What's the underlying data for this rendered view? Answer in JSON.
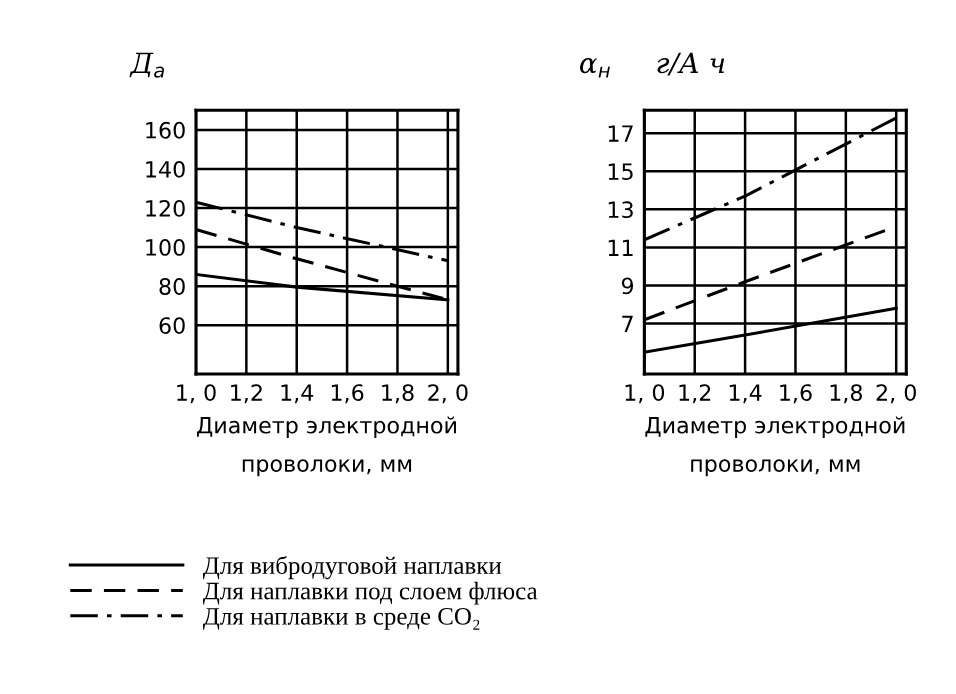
{
  "chart_data": [
    {
      "type": "line",
      "ylabel": "Д$_{а}$",
      "xlabel": "Диаметр электродной\nпроволоки, мм",
      "x": [
        1.0,
        1.4,
        2.0
      ],
      "series": [
        {
          "name": "Для вибродуговой наплавки",
          "color": "#000000",
          "line_style": "solid",
          "values": [
            86,
            79.5,
            73
          ]
        },
        {
          "name": "Для наплавки под слоем флюса",
          "color": "#000000",
          "line_style": "dashed",
          "values": [
            109,
            94,
            73
          ]
        },
        {
          "name": "Для наплавки в среде CO₂",
          "color": "#000000",
          "line_style": "dashdot",
          "values": [
            123,
            110,
            93
          ]
        }
      ],
      "xlim": [
        1.0,
        2.04
      ],
      "xticks": [
        {
          "value": 1.0,
          "label": "1, 0"
        },
        {
          "value": 1.2,
          "label": "1,2"
        },
        {
          "value": 1.4,
          "label": "1,4"
        },
        {
          "value": 1.6,
          "label": "1,6"
        },
        {
          "value": 1.8,
          "label": "1,8"
        },
        {
          "value": 2.0,
          "label": "2, 0"
        }
      ],
      "ylim": [
        35,
        170
      ],
      "yticks": [
        60,
        80,
        100,
        120,
        140,
        160
      ],
      "grid": true,
      "legend": "bottom"
    },
    {
      "type": "line",
      "ylabel": "α$_{н}$     г/А ч",
      "xlabel": "Диаметр электродной\nпроволоки, мм",
      "x": [
        1.0,
        1.4,
        2.0
      ],
      "series": [
        {
          "color": "#000000",
          "line_style": "solid",
          "values": [
            5.5,
            6.4,
            7.8
          ]
        },
        {
          "color": "#000000",
          "line_style": "dashed",
          "values": [
            7.2,
            9.2,
            12.1
          ]
        },
        {
          "color": "#000000",
          "line_style": "dashdot",
          "values": [
            11.4,
            13.7,
            17.8
          ]
        }
      ],
      "xlim": [
        1.0,
        2.04
      ],
      "xticks": [
        {
          "value": 1.0,
          "label": "1, 0"
        },
        {
          "value": 1.2,
          "label": "1,2"
        },
        {
          "value": 1.4,
          "label": "1,4"
        },
        {
          "value": 1.6,
          "label": "1,6"
        },
        {
          "value": 1.8,
          "label": "1,8"
        },
        {
          "value": 2.0,
          "label": "2, 0"
        }
      ],
      "ylim": [
        4.35,
        18.2
      ],
      "yticks": [
        7,
        9,
        11,
        13,
        15,
        17
      ],
      "grid": true
    }
  ]
}
